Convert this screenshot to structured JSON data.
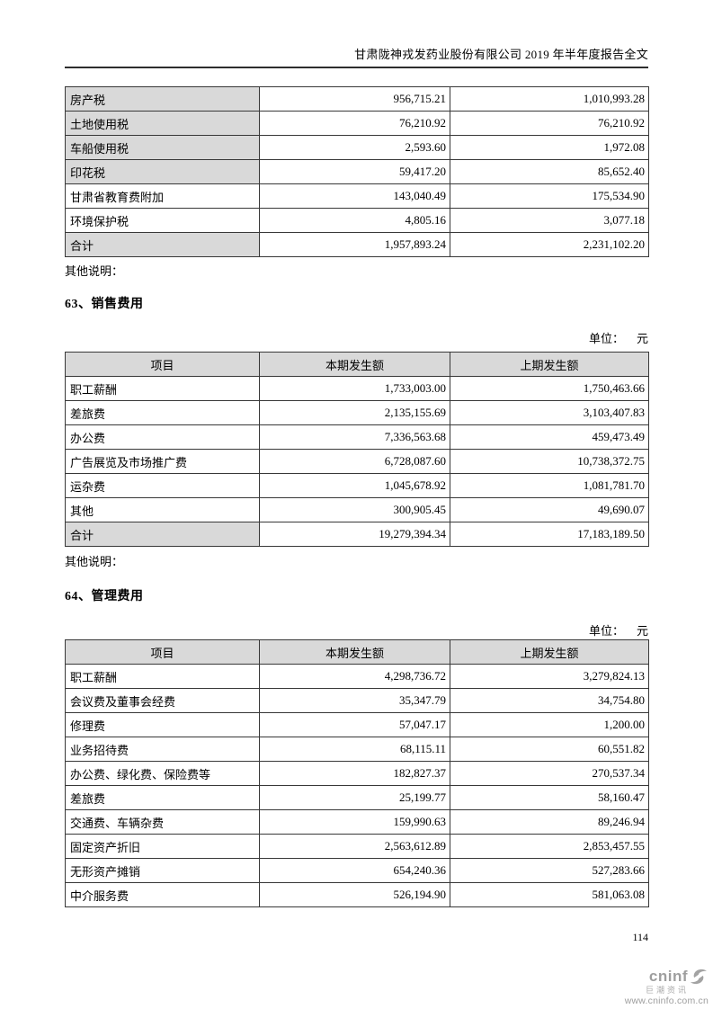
{
  "page": {
    "header_title": "甘肃陇神戎发药业股份有限公司 2019 年半年度报告全文",
    "page_number": "114",
    "other_note": "其他说明：",
    "unit_label": "单位：",
    "unit_value": "元"
  },
  "tax_table": {
    "rows": [
      {
        "label": "房产税",
        "current": "956,715.21",
        "prior": "1,010,993.28",
        "shaded": true
      },
      {
        "label": "土地使用税",
        "current": "76,210.92",
        "prior": "76,210.92",
        "shaded": true
      },
      {
        "label": "车船使用税",
        "current": "2,593.60",
        "prior": "1,972.08",
        "shaded": true
      },
      {
        "label": "印花税",
        "current": "59,417.20",
        "prior": "85,652.40",
        "shaded": true
      },
      {
        "label": "甘肃省教育费附加",
        "current": "143,040.49",
        "prior": "175,534.90",
        "shaded": false
      },
      {
        "label": "环境保护税",
        "current": "4,805.16",
        "prior": "3,077.18",
        "shaded": false
      },
      {
        "label": "合计",
        "current": "1,957,893.24",
        "prior": "2,231,102.20",
        "shaded": true
      }
    ]
  },
  "section63": {
    "title": "63、销售费用"
  },
  "sales_table": {
    "headers": [
      "项目",
      "本期发生额",
      "上期发生额"
    ],
    "rows": [
      {
        "label": "职工薪酬",
        "current": "1,733,003.00",
        "prior": "1,750,463.66",
        "shaded": false
      },
      {
        "label": "差旅费",
        "current": "2,135,155.69",
        "prior": "3,103,407.83",
        "shaded": false
      },
      {
        "label": "办公费",
        "current": "7,336,563.68",
        "prior": "459,473.49",
        "shaded": false
      },
      {
        "label": "广告展览及市场推广费",
        "current": "6,728,087.60",
        "prior": "10,738,372.75",
        "shaded": false
      },
      {
        "label": "运杂费",
        "current": "1,045,678.92",
        "prior": "1,081,781.70",
        "shaded": false
      },
      {
        "label": "其他",
        "current": "300,905.45",
        "prior": "49,690.07",
        "shaded": false
      },
      {
        "label": "合计",
        "current": "19,279,394.34",
        "prior": "17,183,189.50",
        "shaded": true
      }
    ]
  },
  "section64": {
    "title": "64、管理费用"
  },
  "mgmt_table": {
    "headers": [
      "项目",
      "本期发生额",
      "上期发生额"
    ],
    "rows": [
      {
        "label": "职工薪酬",
        "current": "4,298,736.72",
        "prior": "3,279,824.13",
        "shaded": false
      },
      {
        "label": "会议费及董事会经费",
        "current": "35,347.79",
        "prior": "34,754.80",
        "shaded": false
      },
      {
        "label": "修理费",
        "current": "57,047.17",
        "prior": "1,200.00",
        "shaded": false
      },
      {
        "label": "业务招待费",
        "current": "68,115.11",
        "prior": "60,551.82",
        "shaded": false
      },
      {
        "label": "办公费、绿化费、保险费等",
        "current": "182,827.37",
        "prior": "270,537.34",
        "shaded": false
      },
      {
        "label": "差旅费",
        "current": "25,199.77",
        "prior": "58,160.47",
        "shaded": false
      },
      {
        "label": "交通费、车辆杂费",
        "current": "159,990.63",
        "prior": "89,246.94",
        "shaded": false
      },
      {
        "label": "固定资产折旧",
        "current": "2,563,612.89",
        "prior": "2,853,457.55",
        "shaded": false
      },
      {
        "label": "无形资产摊销",
        "current": "654,240.36",
        "prior": "527,283.66",
        "shaded": false
      },
      {
        "label": "中介服务费",
        "current": "526,194.90",
        "prior": "581,063.08",
        "shaded": false
      }
    ]
  },
  "logo": {
    "brand": "cninf",
    "brand_cn": "巨潮资讯",
    "url": "www.cninfo.com.cn",
    "icon": "swirl-icon",
    "color": "#a3a3a3"
  }
}
